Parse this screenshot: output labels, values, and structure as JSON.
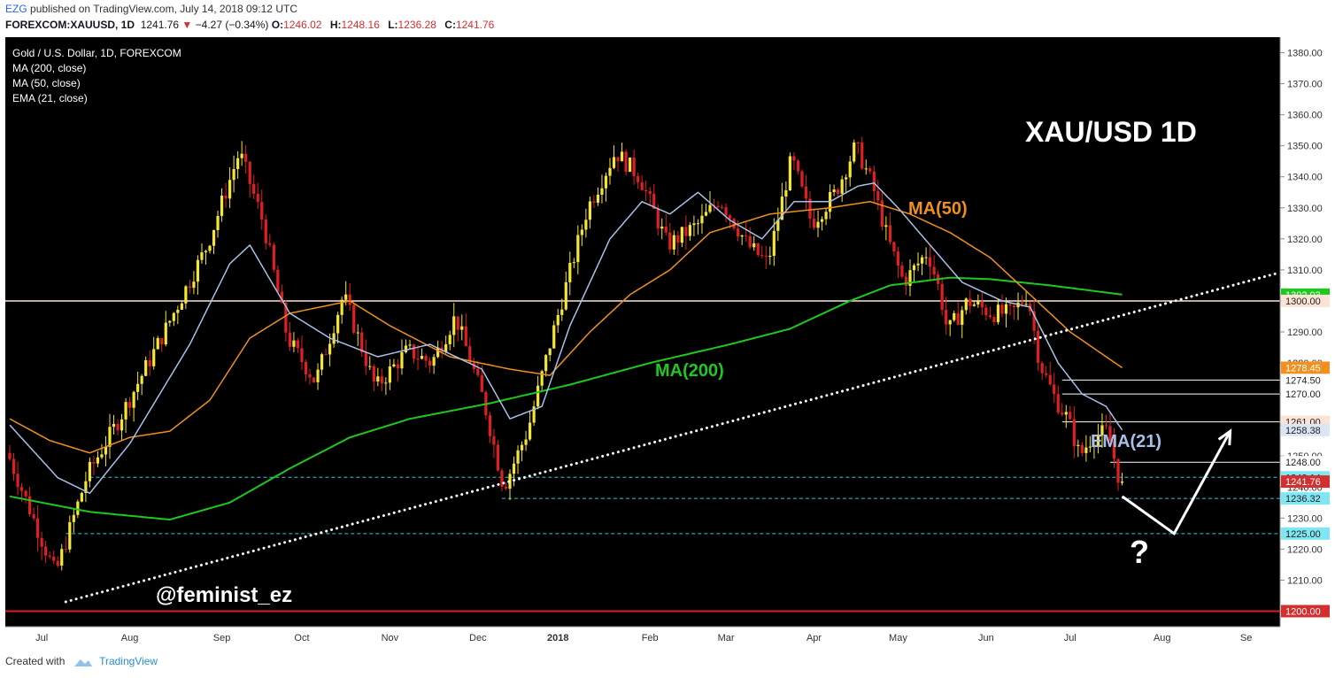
{
  "header": {
    "user": "EZG",
    "published": "published on TradingView.com, July 14, 2018 09:12 UTC",
    "symbol": "FOREXCOM:XAUUSD, 1D",
    "last": "1241.76",
    "arrow": "▼",
    "change": "−4.27 (−0.34%)",
    "o_label": "O:",
    "o": "1246.02",
    "h_label": "H:",
    "h": "1248.16",
    "l_label": "L:",
    "l": "1236.28",
    "c_label": "C:",
    "c": "1241.76"
  },
  "legend": [
    "Gold / U.S. Dollar, 1D, FOREXCOM",
    "MA (200, close)",
    "MA (50, close)",
    "EMA (21, close)"
  ],
  "annotations": {
    "title": "XAU/USD 1D",
    "ma50": "MA(50)",
    "ma200": "MA(200)",
    "ema21": "EMA(21)",
    "author": "@feminist_ez",
    "question": "?"
  },
  "footer": {
    "created_with": "Created with",
    "brand": "TradingView"
  },
  "colors": {
    "background": "#000000",
    "up": "#f5e631",
    "down": "#e02020",
    "ma200": "#1ec81e",
    "ma50": "#f0901e",
    "ema21": "#a8c0e8",
    "trendline": "#ffffff",
    "support": "#d32f2f",
    "dashed": "#35c6dd"
  },
  "chart_data": {
    "type": "candlestick",
    "symbol": "XAUUSD",
    "timeframe": "1D",
    "ylim": [
      1195,
      1385
    ],
    "y_ticks": [
      1200,
      1210,
      1220,
      1230,
      1240,
      1250,
      1260,
      1270,
      1280,
      1290,
      1300,
      1310,
      1320,
      1330,
      1340,
      1350,
      1360,
      1370,
      1380
    ],
    "y_tick_labels": [
      "1200.00",
      "1210.00",
      "1220.00",
      "1230.00",
      "1240.00",
      "1250.00",
      "1260.00",
      "1270.00",
      "1280.00",
      "1290.00",
      "1300.00",
      "1310.00",
      "1320.00",
      "1330.00",
      "1340.00",
      "1350.00",
      "1360.00",
      "1370.00",
      "1380.00"
    ],
    "x_labels": [
      {
        "label": "Jul",
        "index": 8
      },
      {
        "label": "Aug",
        "index": 30
      },
      {
        "label": "Sep",
        "index": 53
      },
      {
        "label": "Oct",
        "index": 73
      },
      {
        "label": "Nov",
        "index": 95
      },
      {
        "label": "Dec",
        "index": 117
      },
      {
        "label": "2018",
        "index": 137
      },
      {
        "label": "Feb",
        "index": 160
      },
      {
        "label": "Mar",
        "index": 179
      },
      {
        "label": "Apr",
        "index": 201
      },
      {
        "label": "May",
        "index": 222
      },
      {
        "label": "Jun",
        "index": 244
      },
      {
        "label": "Jul",
        "index": 265
      },
      {
        "label": "Aug",
        "index": 288
      },
      {
        "label": "Se",
        "index": 309
      }
    ],
    "bars": 279,
    "price_keypoints": [
      {
        "i": 0,
        "p": 1251
      },
      {
        "i": 12,
        "p": 1212
      },
      {
        "i": 20,
        "p": 1244
      },
      {
        "i": 28,
        "p": 1262
      },
      {
        "i": 40,
        "p": 1292
      },
      {
        "i": 50,
        "p": 1318
      },
      {
        "i": 58,
        "p": 1348
      },
      {
        "i": 64,
        "p": 1325
      },
      {
        "i": 70,
        "p": 1288
      },
      {
        "i": 77,
        "p": 1274
      },
      {
        "i": 84,
        "p": 1302
      },
      {
        "i": 92,
        "p": 1272
      },
      {
        "i": 100,
        "p": 1284
      },
      {
        "i": 106,
        "p": 1280
      },
      {
        "i": 112,
        "p": 1295
      },
      {
        "i": 119,
        "p": 1268
      },
      {
        "i": 124,
        "p": 1240
      },
      {
        "i": 130,
        "p": 1258
      },
      {
        "i": 136,
        "p": 1288
      },
      {
        "i": 145,
        "p": 1330
      },
      {
        "i": 152,
        "p": 1348
      },
      {
        "i": 158,
        "p": 1340
      },
      {
        "i": 165,
        "p": 1318
      },
      {
        "i": 173,
        "p": 1325
      },
      {
        "i": 178,
        "p": 1333
      },
      {
        "i": 185,
        "p": 1318
      },
      {
        "i": 190,
        "p": 1312
      },
      {
        "i": 196,
        "p": 1346
      },
      {
        "i": 201,
        "p": 1325
      },
      {
        "i": 207,
        "p": 1335
      },
      {
        "i": 212,
        "p": 1350
      },
      {
        "i": 216,
        "p": 1338
      },
      {
        "i": 220,
        "p": 1320
      },
      {
        "i": 224,
        "p": 1306
      },
      {
        "i": 230,
        "p": 1316
      },
      {
        "i": 233,
        "p": 1303
      },
      {
        "i": 235,
        "p": 1290
      },
      {
        "i": 240,
        "p": 1300
      },
      {
        "i": 246,
        "p": 1296
      },
      {
        "i": 251,
        "p": 1296
      },
      {
        "i": 255,
        "p": 1302
      },
      {
        "i": 258,
        "p": 1280
      },
      {
        "i": 262,
        "p": 1268
      },
      {
        "i": 265,
        "p": 1262
      },
      {
        "i": 268,
        "p": 1250
      },
      {
        "i": 271,
        "p": 1256
      },
      {
        "i": 275,
        "p": 1258
      },
      {
        "i": 278,
        "p": 1241.76
      }
    ],
    "price_levels": [
      {
        "label": "1302.03",
        "value": 1302.03,
        "color": "#1ec81e"
      },
      {
        "label": "1300.00",
        "value": 1300.0,
        "color": "#fbe3d6"
      },
      {
        "label": "1278.45",
        "value": 1278.45,
        "color": "#f0901e"
      },
      {
        "label": "1274.50",
        "value": 1274.5,
        "color": "#ffffff"
      },
      {
        "label": "1270.00",
        "value": 1270.0,
        "color": "#ffffff"
      },
      {
        "label": "1261.00",
        "value": 1261.0,
        "color": "#fbe3d6"
      },
      {
        "label": "1258.38",
        "value": 1258.38,
        "color": "#dbe5f5"
      },
      {
        "label": "1248.00",
        "value": 1248.0,
        "color": "#ffffff"
      },
      {
        "label": "1243.14",
        "value": 1243.14,
        "color": "#7fe6f2"
      },
      {
        "label": "1241.76",
        "value": 1241.76,
        "color": "#d32f2f"
      },
      {
        "label": "1236.32",
        "value": 1236.32,
        "color": "#7fe6f2"
      },
      {
        "label": "1225.00",
        "value": 1225.0,
        "color": "#7fe6f2"
      },
      {
        "label": "1200.00",
        "value": 1200.0,
        "color": "#d32f2f"
      }
    ],
    "horizontal_lines": [
      {
        "value": 1300,
        "from": -5,
        "to": 330,
        "color": "#fbe3d6",
        "style": "solid"
      },
      {
        "value": 1200,
        "from": -5,
        "to": 330,
        "color": "#e01e1e",
        "style": "solid"
      },
      {
        "value": 1243.14,
        "from": 20,
        "to": 330,
        "color": "#35c6dd",
        "style": "dashed"
      },
      {
        "value": 1236.32,
        "from": 123,
        "to": 330,
        "color": "#35c6dd",
        "style": "dashed"
      },
      {
        "value": 1225.0,
        "from": 14,
        "to": 330,
        "color": "#35c6dd",
        "style": "dashed"
      },
      {
        "value": 1274.5,
        "from": 263,
        "to": 330,
        "color": "#ffffff",
        "style": "solid"
      },
      {
        "value": 1270.0,
        "from": 263,
        "to": 330,
        "color": "#ffffff",
        "style": "solid"
      },
      {
        "value": 1261.0,
        "from": 263,
        "to": 330,
        "color": "#ffffff",
        "style": "solid"
      },
      {
        "value": 1248.0,
        "from": 275,
        "to": 330,
        "color": "#ffffff",
        "style": "solid"
      }
    ],
    "trendline": {
      "from": {
        "i": 14,
        "p": 1203
      },
      "to": {
        "i": 317,
        "p": 1309
      }
    },
    "projection": [
      {
        "i": 278,
        "p": 1237
      },
      {
        "i": 291,
        "p": 1225
      },
      {
        "i": 305,
        "p": 1258
      }
    ],
    "ma200": [
      {
        "i": 0,
        "p": 1237
      },
      {
        "i": 20,
        "p": 1232
      },
      {
        "i": 40,
        "p": 1229.5
      },
      {
        "i": 55,
        "p": 1235
      },
      {
        "i": 70,
        "p": 1246
      },
      {
        "i": 85,
        "p": 1256
      },
      {
        "i": 100,
        "p": 1262
      },
      {
        "i": 120,
        "p": 1267
      },
      {
        "i": 140,
        "p": 1273
      },
      {
        "i": 160,
        "p": 1280
      },
      {
        "i": 180,
        "p": 1286
      },
      {
        "i": 195,
        "p": 1291
      },
      {
        "i": 210,
        "p": 1300
      },
      {
        "i": 220,
        "p": 1305
      },
      {
        "i": 235,
        "p": 1307.5
      },
      {
        "i": 245,
        "p": 1307
      },
      {
        "i": 260,
        "p": 1305
      },
      {
        "i": 278,
        "p": 1302.03
      }
    ],
    "ma50": [
      {
        "i": 0,
        "p": 1262
      },
      {
        "i": 10,
        "p": 1255
      },
      {
        "i": 20,
        "p": 1251
      },
      {
        "i": 30,
        "p": 1256
      },
      {
        "i": 40,
        "p": 1258
      },
      {
        "i": 50,
        "p": 1268
      },
      {
        "i": 60,
        "p": 1288
      },
      {
        "i": 70,
        "p": 1296
      },
      {
        "i": 85,
        "p": 1300
      },
      {
        "i": 95,
        "p": 1292
      },
      {
        "i": 110,
        "p": 1282
      },
      {
        "i": 125,
        "p": 1278
      },
      {
        "i": 135,
        "p": 1276
      },
      {
        "i": 145,
        "p": 1290
      },
      {
        "i": 155,
        "p": 1302
      },
      {
        "i": 165,
        "p": 1310
      },
      {
        "i": 175,
        "p": 1322
      },
      {
        "i": 190,
        "p": 1328
      },
      {
        "i": 205,
        "p": 1330
      },
      {
        "i": 215,
        "p": 1332
      },
      {
        "i": 225,
        "p": 1328
      },
      {
        "i": 235,
        "p": 1322
      },
      {
        "i": 245,
        "p": 1314
      },
      {
        "i": 255,
        "p": 1302
      },
      {
        "i": 265,
        "p": 1290
      },
      {
        "i": 278,
        "p": 1278.45
      }
    ],
    "ema21": [
      {
        "i": 0,
        "p": 1260
      },
      {
        "i": 12,
        "p": 1243
      },
      {
        "i": 20,
        "p": 1238
      },
      {
        "i": 30,
        "p": 1254
      },
      {
        "i": 45,
        "p": 1286
      },
      {
        "i": 55,
        "p": 1312
      },
      {
        "i": 60,
        "p": 1318
      },
      {
        "i": 70,
        "p": 1296
      },
      {
        "i": 80,
        "p": 1288
      },
      {
        "i": 92,
        "p": 1282
      },
      {
        "i": 105,
        "p": 1286
      },
      {
        "i": 118,
        "p": 1278
      },
      {
        "i": 125,
        "p": 1262
      },
      {
        "i": 133,
        "p": 1266
      },
      {
        "i": 140,
        "p": 1292
      },
      {
        "i": 150,
        "p": 1320
      },
      {
        "i": 158,
        "p": 1332
      },
      {
        "i": 165,
        "p": 1328
      },
      {
        "i": 172,
        "p": 1335
      },
      {
        "i": 180,
        "p": 1326
      },
      {
        "i": 188,
        "p": 1320
      },
      {
        "i": 196,
        "p": 1332
      },
      {
        "i": 205,
        "p": 1332
      },
      {
        "i": 212,
        "p": 1337
      },
      {
        "i": 216,
        "p": 1338
      },
      {
        "i": 222,
        "p": 1330
      },
      {
        "i": 230,
        "p": 1318
      },
      {
        "i": 238,
        "p": 1306
      },
      {
        "i": 248,
        "p": 1300
      },
      {
        "i": 255,
        "p": 1298
      },
      {
        "i": 262,
        "p": 1280
      },
      {
        "i": 268,
        "p": 1270
      },
      {
        "i": 274,
        "p": 1266
      },
      {
        "i": 278,
        "p": 1258.38
      }
    ]
  }
}
